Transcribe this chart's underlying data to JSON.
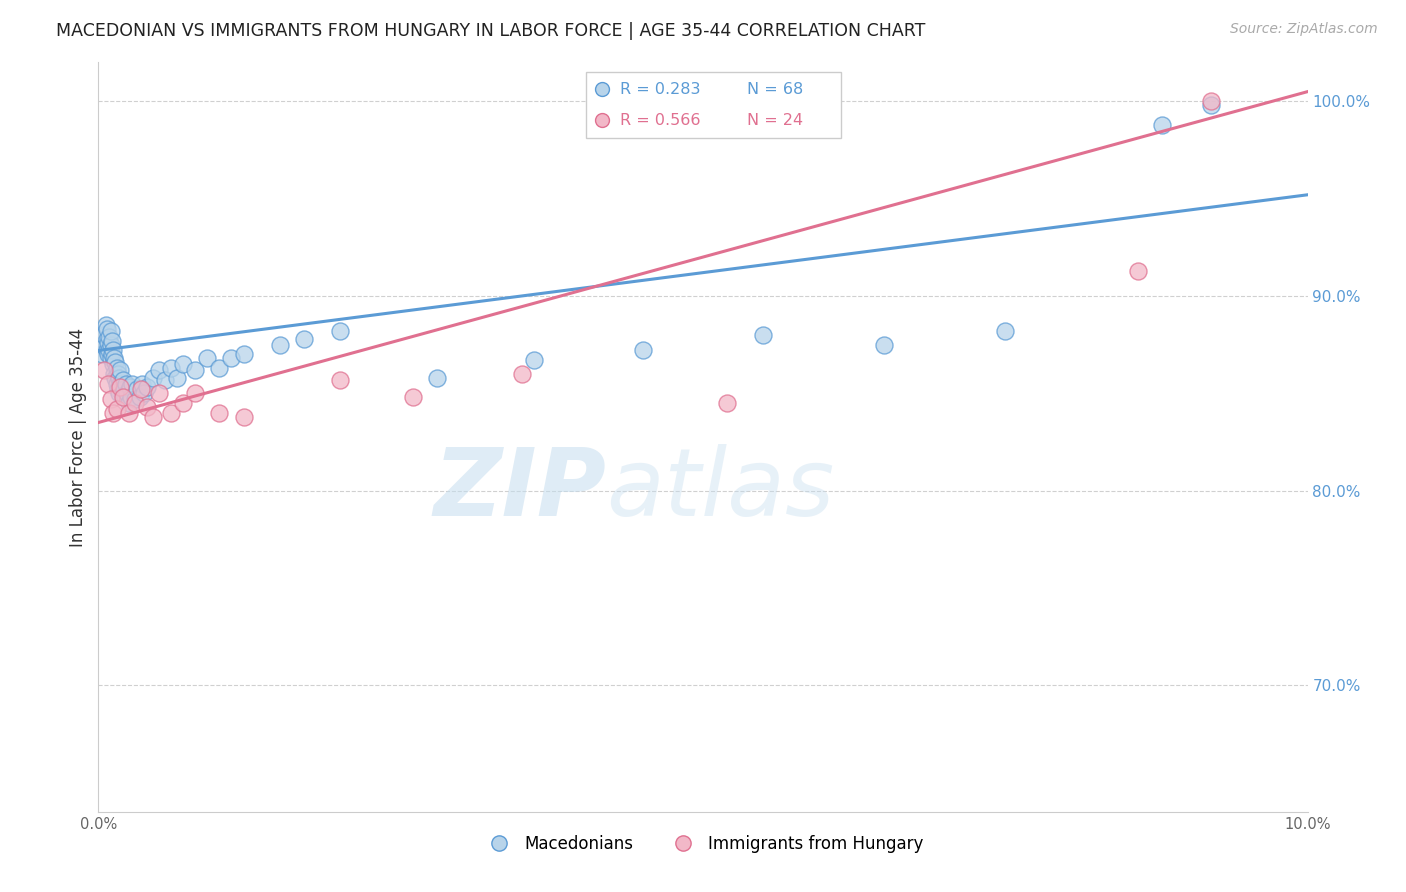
{
  "title": "MACEDONIAN VS IMMIGRANTS FROM HUNGARY IN LABOR FORCE | AGE 35-44 CORRELATION CHART",
  "source": "Source: ZipAtlas.com",
  "ylabel": "In Labor Force | Age 35-44",
  "legend_label1": "Macedonians",
  "legend_label2": "Immigrants from Hungary",
  "r1": 0.283,
  "n1": 68,
  "r2": 0.566,
  "n2": 24,
  "color_blue_fill": "#b8d4ea",
  "color_blue_edge": "#5b9bd5",
  "color_pink_fill": "#f2b8c8",
  "color_pink_edge": "#e07090",
  "color_blue_line": "#5b9bd5",
  "color_pink_line": "#e07090",
  "color_blue_text": "#5b9bd5",
  "color_pink_text": "#e07090",
  "color_right_axis": "#5b9bd5",
  "xlim": [
    0.0,
    0.1
  ],
  "ylim": [
    0.635,
    1.02
  ],
  "xticks": [
    0.0,
    0.02,
    0.04,
    0.06,
    0.08,
    0.1
  ],
  "yticks_right": [
    0.7,
    0.8,
    0.9,
    1.0
  ],
  "grid_color": "#d0d0d0",
  "watermark": "ZIPatlas",
  "blue_line_x0": 0.0,
  "blue_line_y0": 0.872,
  "blue_line_x1": 0.1,
  "blue_line_y1": 0.952,
  "pink_line_x0": 0.0,
  "pink_line_y0": 0.835,
  "pink_line_x1": 0.1,
  "pink_line_y1": 1.005,
  "blue_x": [
    0.0003,
    0.0004,
    0.0005,
    0.0006,
    0.0007,
    0.0007,
    0.0007,
    0.0008,
    0.0008,
    0.0009,
    0.0009,
    0.001,
    0.001,
    0.001,
    0.0011,
    0.0011,
    0.0012,
    0.0012,
    0.0013,
    0.0013,
    0.0014,
    0.0014,
    0.0015,
    0.0015,
    0.0016,
    0.0016,
    0.0017,
    0.0017,
    0.0018,
    0.0018,
    0.002,
    0.002,
    0.0021,
    0.0022,
    0.0023,
    0.0024,
    0.0025,
    0.0026,
    0.0027,
    0.0028,
    0.003,
    0.0032,
    0.0034,
    0.0036,
    0.0038,
    0.004,
    0.0045,
    0.005,
    0.0055,
    0.006,
    0.0065,
    0.007,
    0.008,
    0.009,
    0.01,
    0.011,
    0.012,
    0.015,
    0.017,
    0.02,
    0.028,
    0.036,
    0.045,
    0.055,
    0.065,
    0.075,
    0.088,
    0.092
  ],
  "blue_y": [
    0.87,
    0.875,
    0.88,
    0.885,
    0.872,
    0.878,
    0.883,
    0.87,
    0.876,
    0.872,
    0.879,
    0.868,
    0.875,
    0.882,
    0.87,
    0.877,
    0.865,
    0.872,
    0.86,
    0.868,
    0.858,
    0.866,
    0.855,
    0.863,
    0.852,
    0.86,
    0.85,
    0.858,
    0.855,
    0.862,
    0.85,
    0.857,
    0.852,
    0.848,
    0.855,
    0.85,
    0.845,
    0.853,
    0.848,
    0.855,
    0.847,
    0.852,
    0.848,
    0.855,
    0.85,
    0.853,
    0.858,
    0.862,
    0.857,
    0.863,
    0.858,
    0.865,
    0.862,
    0.868,
    0.863,
    0.868,
    0.87,
    0.875,
    0.878,
    0.882,
    0.858,
    0.867,
    0.872,
    0.88,
    0.875,
    0.882,
    0.988,
    0.998
  ],
  "pink_x": [
    0.0005,
    0.0008,
    0.001,
    0.0012,
    0.0015,
    0.0018,
    0.002,
    0.0025,
    0.003,
    0.0035,
    0.004,
    0.0045,
    0.005,
    0.006,
    0.007,
    0.008,
    0.01,
    0.012,
    0.02,
    0.026,
    0.035,
    0.052,
    0.086,
    0.092
  ],
  "pink_y": [
    0.862,
    0.855,
    0.847,
    0.84,
    0.842,
    0.853,
    0.848,
    0.84,
    0.845,
    0.852,
    0.843,
    0.838,
    0.85,
    0.84,
    0.845,
    0.85,
    0.84,
    0.838,
    0.857,
    0.848,
    0.86,
    0.845,
    0.913,
    1.0
  ]
}
